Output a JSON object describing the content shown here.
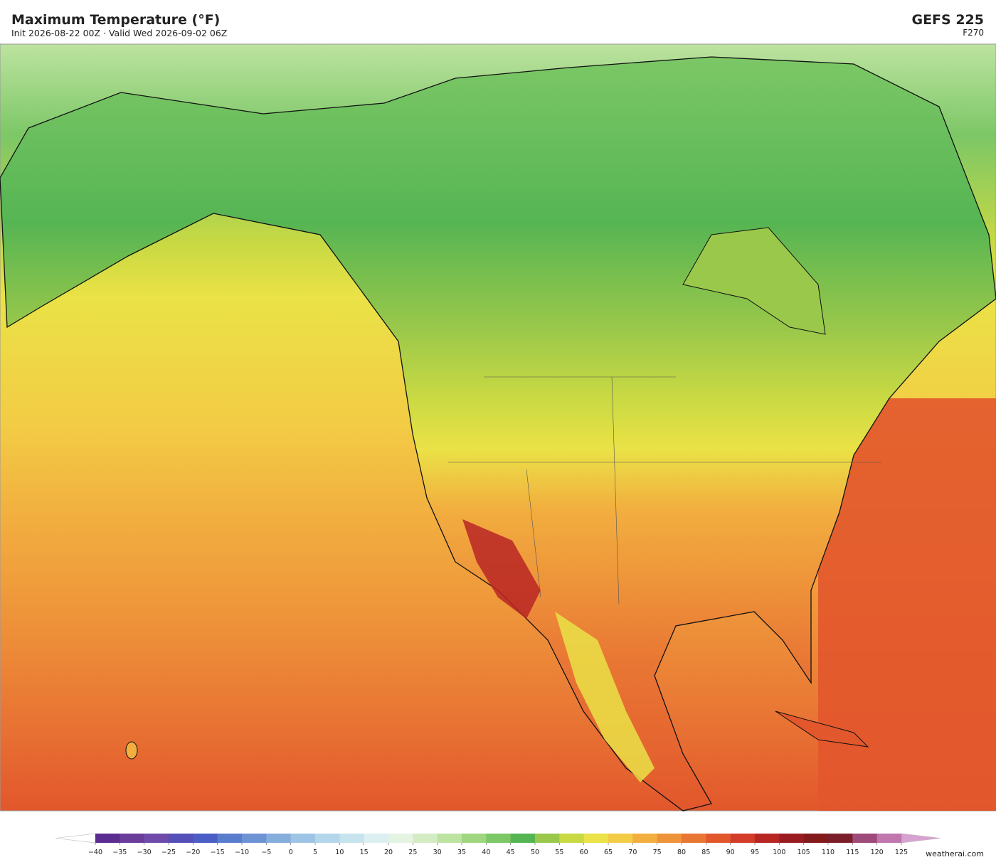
{
  "header": {
    "title": "Maximum Temperature  (°F)",
    "subtitle": "Init 2026-08-22 00Z  ·  Valid Wed 2026-09-02 06Z",
    "model": "GEFS  225",
    "forecast_hour": "F270"
  },
  "colorbar": {
    "ticks": [
      {
        "value": -40,
        "label": "−40"
      },
      {
        "value": -35,
        "label": "−35"
      },
      {
        "value": -30,
        "label": "−30"
      },
      {
        "value": -25,
        "label": "−25"
      },
      {
        "value": -20,
        "label": "−20"
      },
      {
        "value": -15,
        "label": "−15"
      },
      {
        "value": -10,
        "label": "−10"
      },
      {
        "value": -5,
        "label": "−5"
      },
      0,
      5,
      10,
      15,
      20,
      25,
      30,
      35,
      40,
      45,
      50,
      55,
      60,
      65,
      70,
      75,
      80,
      85,
      90,
      95,
      100,
      105,
      110,
      115,
      120,
      125
    ],
    "colors": [
      "#5b2d91",
      "#6a3d9a",
      "#6f4aa8",
      "#5550b8",
      "#4b5ec6",
      "#5a7ccc",
      "#6d93d4",
      "#86aedd",
      "#9ec4e5",
      "#b3d6ea",
      "#c7e3ee",
      "#dceff1",
      "#e5f3e3",
      "#d3ecc3",
      "#bde3a0",
      "#9fd67f",
      "#7cc766",
      "#56b553",
      "#9ac84a",
      "#c8d943",
      "#eae246",
      "#f3cb45",
      "#f2ae3f",
      "#ee933a",
      "#e97734",
      "#e2572c",
      "#d23c28",
      "#b82624",
      "#9b1c20",
      "#821a1c",
      "#7a1f2a",
      "#9e4a7a",
      "#c077ae"
    ],
    "under_color": "#ffffff",
    "over_color": "#d7a2d1"
  },
  "footer": {
    "credit": "weatherai.com"
  }
}
